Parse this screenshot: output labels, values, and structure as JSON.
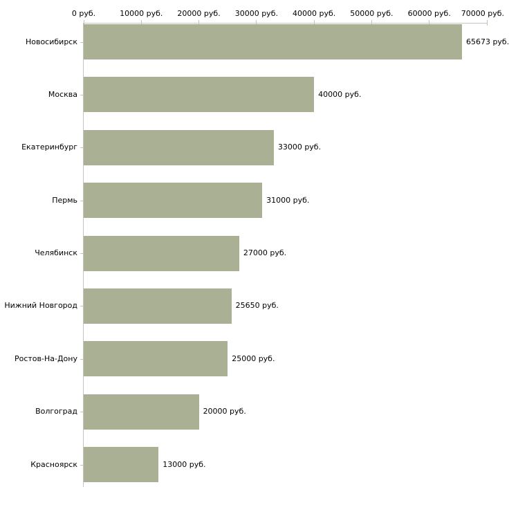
{
  "chart_data": {
    "type": "bar",
    "orientation": "horizontal",
    "title": "",
    "unit": "руб.",
    "categories": [
      "Новосибирск",
      "Москва",
      "Екатеринбург",
      "Пермь",
      "Челябинск",
      "Нижний Новгород",
      "Ростов-На-Дону",
      "Волгоград",
      "Красноярск"
    ],
    "values": [
      65673,
      40000,
      33000,
      31000,
      27000,
      25650,
      25000,
      20000,
      13000
    ],
    "value_labels": [
      "65673 руб.",
      "40000 руб.",
      "33000 руб.",
      "31000 руб.",
      "27000 руб.",
      "25650 руб.",
      "25000 руб.",
      "20000 руб.",
      "13000 руб."
    ],
    "x_axis": {
      "position": "top",
      "range": [
        0,
        70000
      ],
      "ticks": [
        0,
        10000,
        20000,
        30000,
        40000,
        50000,
        60000,
        70000
      ],
      "tick_labels": [
        "0 руб.",
        "10000 руб.",
        "20000 руб.",
        "30000 руб.",
        "40000 руб.",
        "50000 руб.",
        "60000 руб.",
        "70000 руб."
      ]
    },
    "grid": false,
    "legend": false,
    "colors": {
      "bar_fill": "#aab094",
      "axis_line": "#c3c3c3",
      "tick_mark": "#c6c3a0",
      "text": "#000000",
      "background": "#ffffff"
    }
  }
}
